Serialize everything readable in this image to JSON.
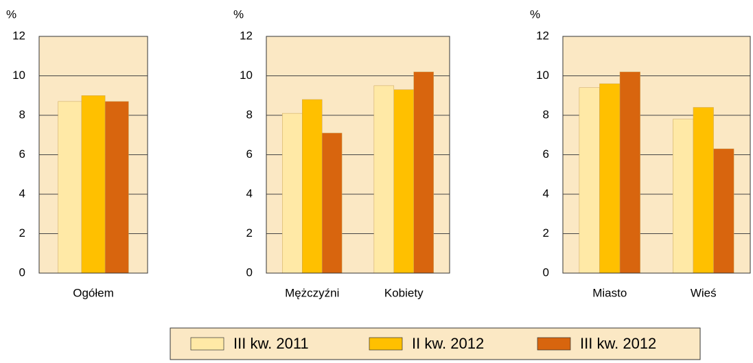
{
  "legend": [
    {
      "name": "III kw. 2011",
      "color": "#ffe9a6"
    },
    {
      "name": "II kw. 2012",
      "color": "#ffc000"
    },
    {
      "name": "III kw. 2012",
      "color": "#d8650e"
    }
  ],
  "chart_data": [
    {
      "type": "bar",
      "ylabel": "%",
      "categories": [
        "Ogółem"
      ],
      "series": [
        {
          "values": [
            8.7
          ]
        },
        {
          "values": [
            9.0
          ]
        },
        {
          "values": [
            8.7
          ]
        }
      ],
      "ylim": [
        0,
        12
      ],
      "yticks": [
        0,
        2,
        4,
        6,
        8,
        10,
        12
      ],
      "grid": true
    },
    {
      "type": "bar",
      "ylabel": "%",
      "categories": [
        "Mężczyźni",
        "Kobiety"
      ],
      "series": [
        {
          "values": [
            8.1,
            9.5
          ]
        },
        {
          "values": [
            8.8,
            9.3
          ]
        },
        {
          "values": [
            7.1,
            10.2
          ]
        }
      ],
      "ylim": [
        0,
        12
      ],
      "yticks": [
        0,
        2,
        4,
        6,
        8,
        10,
        12
      ],
      "grid": true
    },
    {
      "type": "bar",
      "ylabel": "%",
      "categories": [
        "Miasto",
        "Wieś"
      ],
      "series": [
        {
          "values": [
            9.4,
            7.8
          ]
        },
        {
          "values": [
            9.6,
            8.4
          ]
        },
        {
          "values": [
            10.2,
            6.3
          ]
        }
      ],
      "ylim": [
        0,
        12
      ],
      "yticks": [
        0,
        2,
        4,
        6,
        8,
        10,
        12
      ],
      "grid": true
    }
  ]
}
